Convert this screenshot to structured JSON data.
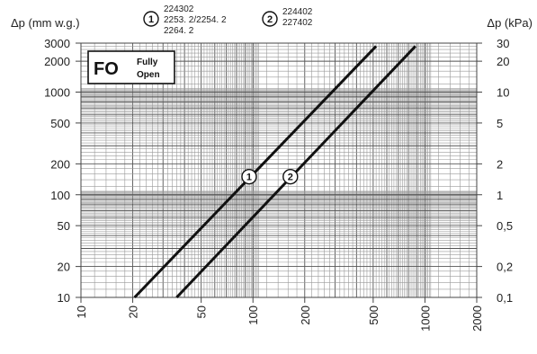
{
  "chart_data": {
    "type": "line",
    "title": "",
    "ylabel_left": "Δp (mm w.g.)",
    "ylabel_right": "Δp (kPa)",
    "xlabel": "",
    "x_scale": "log",
    "y_scale": "log",
    "xlim": [
      10,
      2000
    ],
    "ylim": [
      10,
      3000
    ],
    "x_ticks": [
      "10",
      "20",
      "50",
      "100",
      "200",
      "500",
      "1000",
      "2000"
    ],
    "x_tick_values": [
      10,
      20,
      50,
      100,
      200,
      500,
      1000,
      2000
    ],
    "y_ticks_left": [
      "10",
      "20",
      "50",
      "100",
      "200",
      "500",
      "1000",
      "2000",
      "3000"
    ],
    "y_tick_values": [
      10,
      20,
      50,
      100,
      200,
      500,
      1000,
      2000,
      3000
    ],
    "y_ticks_right": [
      "0,1",
      "0,2",
      "0,5",
      "1",
      "2",
      "5",
      "10",
      "20",
      "30"
    ],
    "grid": true,
    "legend": {
      "badge_main": "FO",
      "badge_sub_1": "Fully",
      "badge_sub_2": "Open",
      "items": [
        {
          "marker": "1",
          "lines": [
            "224302",
            "2253. 2/2254. 2",
            "2264. 2"
          ]
        },
        {
          "marker": "2",
          "lines": [
            "224402",
            "227402"
          ]
        }
      ]
    },
    "series": [
      {
        "marker": "1",
        "x": [
          20.5,
          520
        ],
        "y": [
          10,
          2800
        ],
        "marker_at": [
          95,
          150
        ]
      },
      {
        "marker": "2",
        "x": [
          36,
          880
        ],
        "y": [
          10,
          2800
        ],
        "marker_at": [
          165,
          150
        ]
      }
    ]
  }
}
